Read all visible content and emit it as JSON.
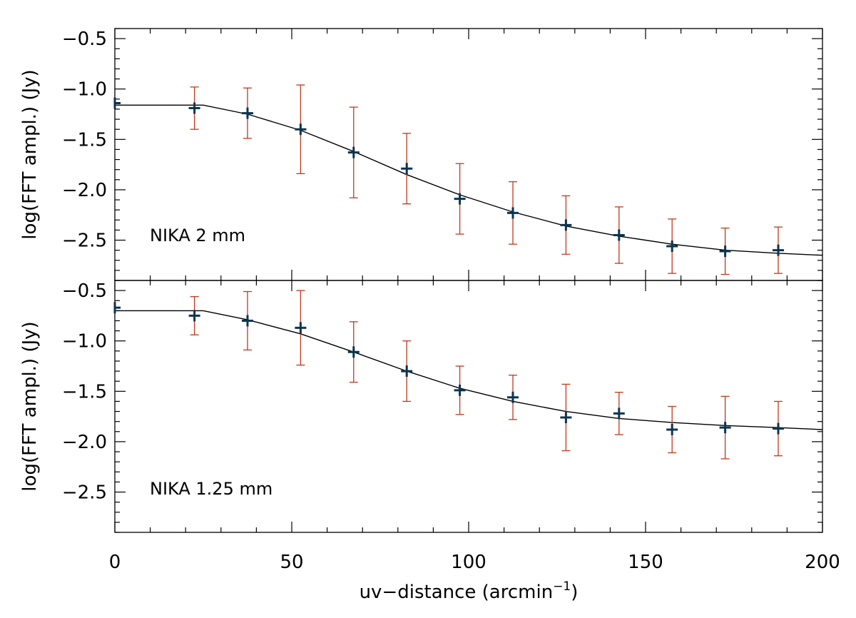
{
  "chart_data": [
    {
      "type": "scatter",
      "panel": "top",
      "label": "NIKA 2 mm",
      "ylabel": "log(FFT ampl.) (Jy)",
      "xlim": [
        0,
        200
      ],
      "ylim": [
        -2.9,
        -0.4
      ],
      "y_ticks": [
        -0.5,
        -1.0,
        -1.5,
        -2.0,
        -2.5
      ],
      "y_tick_labels": [
        "−0.5",
        "−1.0",
        "−1.5",
        "−2.0",
        "−2.5"
      ],
      "x": [
        0,
        22.5,
        37.5,
        52.5,
        67.5,
        82.5,
        97.5,
        112.5,
        127.5,
        142.5,
        157.5,
        172.5,
        187.5
      ],
      "y": [
        -1.14,
        -1.19,
        -1.24,
        -1.4,
        -1.63,
        -1.79,
        -2.09,
        -2.23,
        -2.35,
        -2.45,
        -2.56,
        -2.61,
        -2.6
      ],
      "err": [
        0.0,
        0.21,
        0.25,
        0.44,
        0.45,
        0.35,
        0.35,
        0.31,
        0.29,
        0.28,
        0.27,
        0.23,
        0.23
      ],
      "model": {
        "x": [
          0,
          25,
          37.5,
          52.5,
          67.5,
          82.5,
          97.5,
          112.5,
          127.5,
          142.5,
          157.5,
          172.5,
          187.5,
          200
        ],
        "y": [
          -1.16,
          -1.16,
          -1.25,
          -1.41,
          -1.62,
          -1.85,
          -2.05,
          -2.22,
          -2.36,
          -2.46,
          -2.54,
          -2.6,
          -2.63,
          -2.65
        ]
      }
    },
    {
      "type": "scatter",
      "panel": "bottom",
      "label": "NIKA 1.25 mm",
      "ylabel": "log(FFT ampl.) (Jy)",
      "xlabel": "uv−distance (arcmin",
      "xlabel_sup": "−1",
      "xlabel_end": ")",
      "xlim": [
        0,
        200
      ],
      "ylim": [
        -2.9,
        -0.4
      ],
      "x_ticks": [
        0,
        50,
        100,
        150,
        200
      ],
      "x_tick_labels": [
        "0",
        "50",
        "100",
        "150",
        "200"
      ],
      "y_ticks": [
        -0.5,
        -1.0,
        -1.5,
        -2.0,
        -2.5
      ],
      "y_tick_labels": [
        "−0.5",
        "−1.0",
        "−1.5",
        "−2.0",
        "−2.5"
      ],
      "x": [
        0,
        22.5,
        37.5,
        52.5,
        67.5,
        82.5,
        97.5,
        112.5,
        127.5,
        142.5,
        157.5,
        172.5,
        187.5
      ],
      "y": [
        -0.67,
        -0.75,
        -0.8,
        -0.87,
        -1.11,
        -1.3,
        -1.49,
        -1.56,
        -1.76,
        -1.72,
        -1.88,
        -1.86,
        -1.87
      ],
      "err": [
        0.0,
        0.19,
        0.29,
        0.37,
        0.3,
        0.3,
        0.24,
        0.22,
        0.33,
        0.21,
        0.23,
        0.31,
        0.27
      ],
      "model": {
        "x": [
          0,
          25,
          37.5,
          52.5,
          67.5,
          82.5,
          97.5,
          112.5,
          127.5,
          142.5,
          157.5,
          172.5,
          187.5,
          200
        ],
        "y": [
          -0.7,
          -0.7,
          -0.79,
          -0.93,
          -1.11,
          -1.3,
          -1.47,
          -1.6,
          -1.7,
          -1.77,
          -1.81,
          -1.84,
          -1.86,
          -1.88
        ]
      }
    }
  ]
}
